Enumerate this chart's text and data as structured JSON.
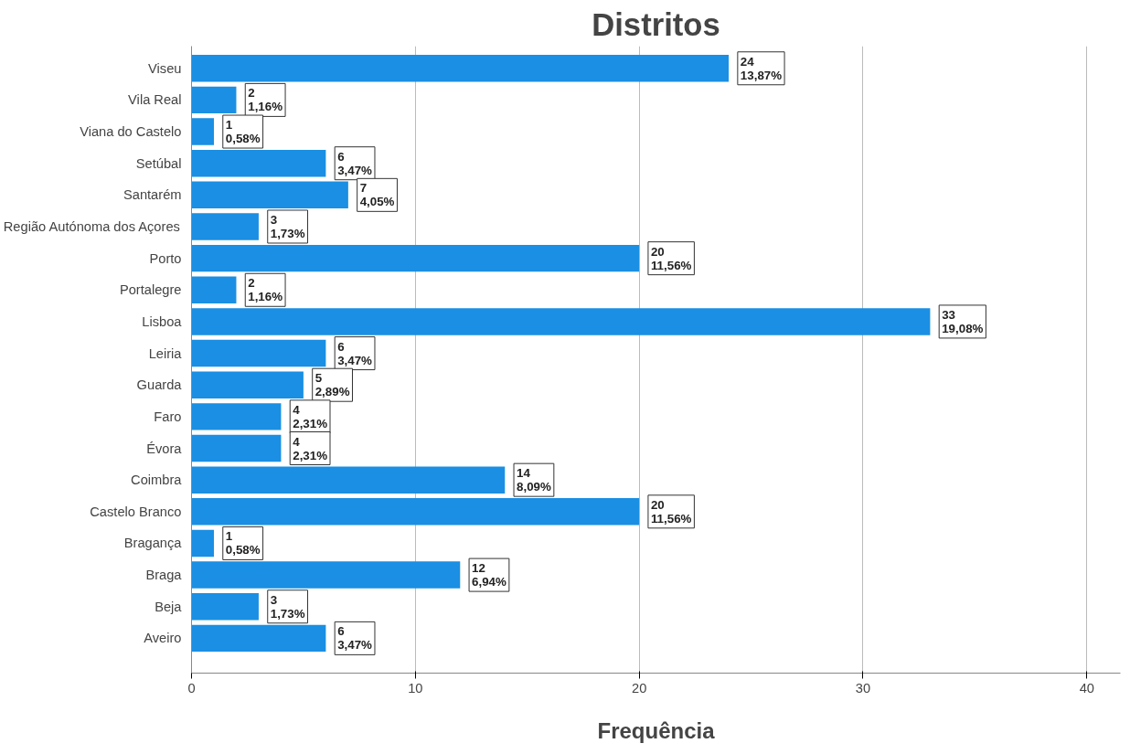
{
  "chart_data": {
    "type": "bar",
    "orientation": "horizontal",
    "title": "Distritos",
    "xlabel": "Frequência",
    "categories": [
      "Viseu",
      "Vila Real",
      "Viana do Castelo",
      "Setúbal",
      "Santarém",
      "Região Autónoma dos Açores",
      "Porto",
      "Portalegre",
      "Lisboa",
      "Leiria",
      "Guarda",
      "Faro",
      "Évora",
      "Coimbra",
      "Castelo Branco",
      "Bragança",
      "Braga",
      "Beja",
      "Aveiro"
    ],
    "values": [
      24,
      2,
      1,
      6,
      7,
      3,
      20,
      2,
      33,
      6,
      5,
      4,
      4,
      14,
      20,
      1,
      12,
      3,
      6
    ],
    "value_labels": [
      "24\n13,87%",
      "2\n1,16%",
      "1\n0,58%",
      "6\n3,47%",
      "7\n4,05%",
      "3\n1,73%",
      "20\n11,56%",
      "2\n1,16%",
      "33\n19,08%",
      "6\n3,47%",
      "5\n2,89%",
      "4\n2,31%",
      "4\n2,31%",
      "14\n8,09%",
      "20\n11,56%",
      "1\n0,58%",
      "12\n6,94%",
      "3\n1,73%",
      "6\n3,47%"
    ],
    "color": "#1a8fe3",
    "xlim": [
      0,
      41.5
    ],
    "xticks": [
      0,
      10,
      20,
      30,
      40
    ],
    "grid": "x"
  }
}
